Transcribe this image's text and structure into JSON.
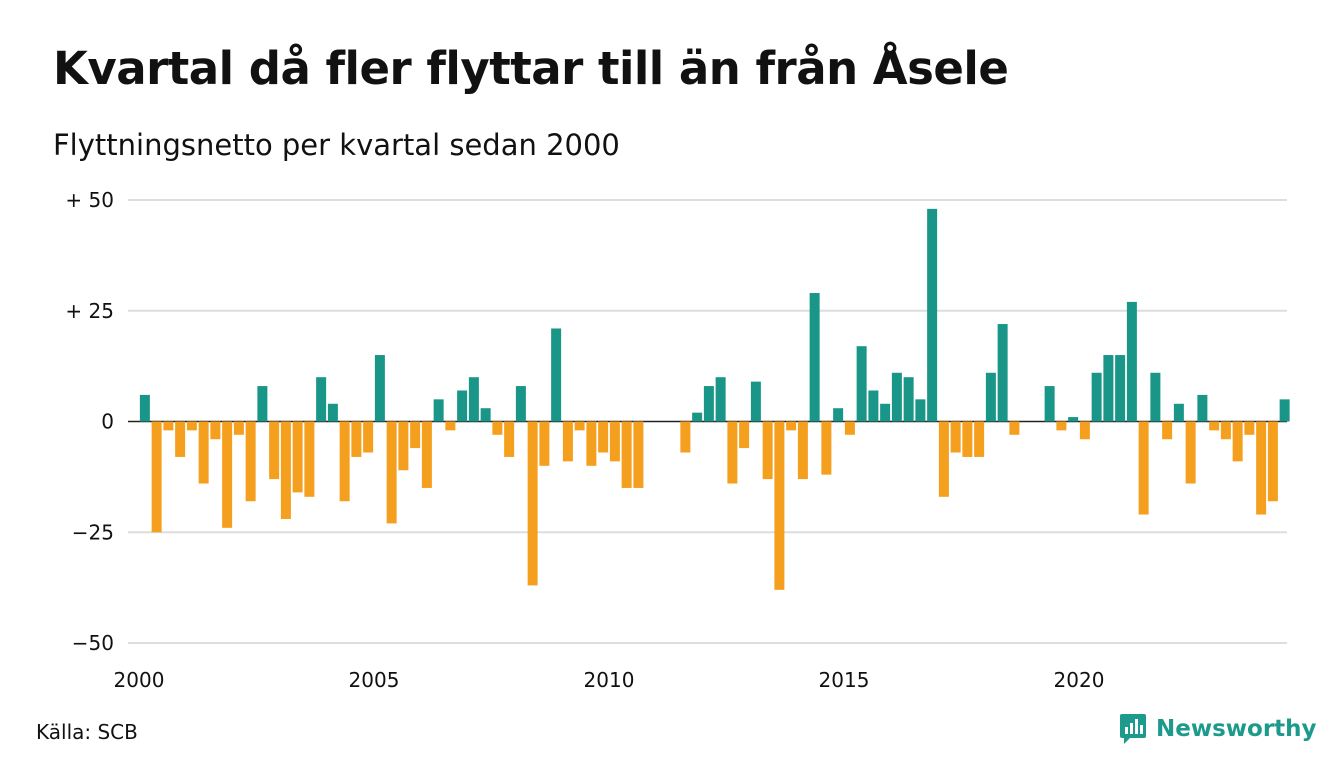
{
  "title": "Kvartal då fler flyttar till än från Åsele",
  "subtitle": "Flyttningsnetto per kvartal sedan 2000",
  "source": "Källa: SCB",
  "brand": {
    "name": "Newsworthy",
    "icon": "newsworthy-logo-icon"
  },
  "colors": {
    "positive": "#1a9688",
    "negative": "#f49f1e",
    "grid": "#dddddd"
  },
  "chart_data": {
    "type": "bar",
    "title": "Kvartal då fler flyttar till än från Åsele",
    "subtitle": "Flyttningsnetto per kvartal sedan 2000",
    "xlabel": "",
    "ylabel": "",
    "ylim": [
      -50,
      50
    ],
    "y_ticks": [
      {
        "value": 50,
        "label": "+ 50"
      },
      {
        "value": 25,
        "label": "+ 25"
      },
      {
        "value": 0,
        "label": "0"
      },
      {
        "value": -25,
        "label": "−25"
      },
      {
        "value": -50,
        "label": "−50"
      }
    ],
    "x_ticks": [
      "2000",
      "2005",
      "2010",
      "2015",
      "2020"
    ],
    "grid": true,
    "legend": "none",
    "start": "2000Q1",
    "values": [
      6,
      -25,
      -2,
      -8,
      -2,
      -14,
      -4,
      -24,
      -3,
      -18,
      8,
      -13,
      -22,
      -16,
      -17,
      10,
      4,
      -18,
      -8,
      -7,
      15,
      -23,
      -11,
      -6,
      -15,
      5,
      -2,
      7,
      10,
      3,
      -3,
      -8,
      8,
      -37,
      -10,
      21,
      -9,
      -2,
      -10,
      -7,
      -9,
      -15,
      -15,
      0,
      0,
      0,
      -7,
      2,
      8,
      10,
      -14,
      -6,
      9,
      -13,
      -38,
      -2,
      -13,
      29,
      -12,
      3,
      -3,
      17,
      7,
      4,
      11,
      10,
      5,
      48,
      -17,
      -7,
      -8,
      -8,
      11,
      22,
      -3,
      0,
      0,
      8,
      -2,
      1,
      -4,
      11,
      15,
      15,
      27,
      -21,
      11,
      -4,
      4,
      -14,
      6,
      -2,
      -4,
      -9,
      -3,
      -21,
      -18,
      5
    ]
  }
}
